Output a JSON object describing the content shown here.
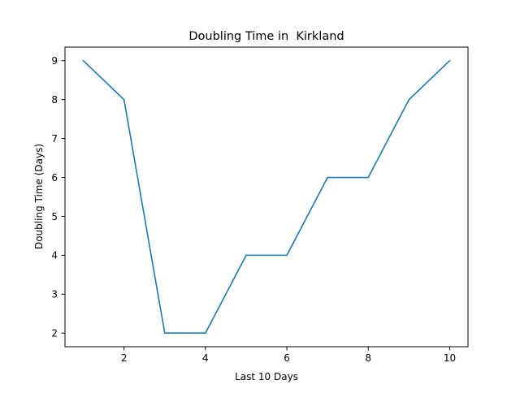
{
  "chart_data": {
    "type": "line",
    "title": "Doubling Time in  Kirkland",
    "xlabel": "Last 10 Days",
    "ylabel": "Doubling Time (Days)",
    "x": [
      1,
      2,
      3,
      4,
      5,
      6,
      7,
      8,
      9,
      10
    ],
    "series": [
      {
        "values": [
          9,
          8,
          2,
          2,
          4,
          4,
          6,
          6,
          8,
          9
        ],
        "color": "#1f77b4"
      }
    ],
    "xlim": [
      0.55,
      10.45
    ],
    "ylim": [
      1.65,
      9.35
    ],
    "xticks": [
      2,
      4,
      6,
      8,
      10
    ],
    "yticks": [
      2,
      3,
      4,
      5,
      6,
      7,
      8,
      9
    ],
    "grid": false,
    "legend": "none"
  }
}
